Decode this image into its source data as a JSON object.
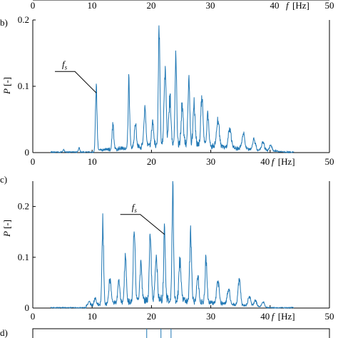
{
  "colors": {
    "line": "#1f77b4",
    "axis": "#000000"
  },
  "top_strip": {
    "xticks": [
      "0",
      "10",
      "20",
      "30",
      "40",
      "50"
    ],
    "xlabel_symbol": "f",
    "xlabel_unit": "[Hz]"
  },
  "chart_data": [
    {
      "panel_label": "b)",
      "type": "line",
      "xlabel_symbol": "f",
      "xlabel_unit": "[Hz]",
      "ylabel_symbol": "P",
      "ylabel_unit": "[-]",
      "xlim": [
        0,
        50
      ],
      "ylim": [
        0,
        0.2
      ],
      "xticks": [
        0,
        10,
        20,
        30,
        40,
        50
      ],
      "yticks": [
        0,
        0.1,
        0.2
      ],
      "yticklabels": [
        "0",
        "0.1",
        "0.2"
      ],
      "annotation": {
        "text": "fs",
        "x": 10.7,
        "y": 0.09
      },
      "peaks": [
        {
          "f": 5.2,
          "p": 0.004,
          "w": 0.25
        },
        {
          "f": 7.8,
          "p": 0.007,
          "w": 0.25
        },
        {
          "f": 10.7,
          "p": 0.09,
          "w": 0.3
        },
        {
          "f": 13.5,
          "p": 0.04,
          "w": 0.3
        },
        {
          "f": 16.2,
          "p": 0.097,
          "w": 0.3
        },
        {
          "f": 17.3,
          "p": 0.035,
          "w": 0.4
        },
        {
          "f": 18.9,
          "p": 0.055,
          "w": 0.4
        },
        {
          "f": 20.2,
          "p": 0.035,
          "w": 0.4
        },
        {
          "f": 21.3,
          "p": 0.18,
          "w": 0.3
        },
        {
          "f": 22.3,
          "p": 0.11,
          "w": 0.4
        },
        {
          "f": 23.1,
          "p": 0.07,
          "w": 0.4
        },
        {
          "f": 24.1,
          "p": 0.143,
          "w": 0.3
        },
        {
          "f": 25.2,
          "p": 0.06,
          "w": 0.4
        },
        {
          "f": 26.3,
          "p": 0.093,
          "w": 0.35
        },
        {
          "f": 27.2,
          "p": 0.06,
          "w": 0.4
        },
        {
          "f": 28.5,
          "p": 0.07,
          "w": 0.4
        },
        {
          "f": 29.5,
          "p": 0.045,
          "w": 0.4
        },
        {
          "f": 31.2,
          "p": 0.04,
          "w": 0.5
        },
        {
          "f": 33.2,
          "p": 0.03,
          "w": 0.5
        },
        {
          "f": 35.5,
          "p": 0.022,
          "w": 0.5
        },
        {
          "f": 37.3,
          "p": 0.015,
          "w": 0.5
        },
        {
          "f": 38.8,
          "p": 0.012,
          "w": 0.5
        },
        {
          "f": 40.1,
          "p": 0.008,
          "w": 0.5
        }
      ],
      "background": {
        "start": 10.5,
        "end": 43,
        "level": 0.015,
        "peak_at": 25
      }
    },
    {
      "panel_label": "c)",
      "type": "line",
      "xlabel_symbol": "f",
      "xlabel_unit": "[Hz]",
      "ylabel_symbol": "P",
      "ylabel_unit": "[-]",
      "xlim": [
        0,
        50
      ],
      "ylim": [
        0,
        0.25
      ],
      "xticks": [
        0,
        10,
        20,
        30,
        40,
        50
      ],
      "yticks": [
        0,
        0.1,
        0.2
      ],
      "yticklabels": [
        "0",
        "0.1",
        "0.2"
      ],
      "annotation": {
        "text": "fs",
        "x": 22.2,
        "y": 0.145
      },
      "peaks": [
        {
          "f": 9.5,
          "p": 0.007,
          "w": 0.3
        },
        {
          "f": 10.5,
          "p": 0.012,
          "w": 0.3
        },
        {
          "f": 11.8,
          "p": 0.16,
          "w": 0.3
        },
        {
          "f": 13.0,
          "p": 0.05,
          "w": 0.4
        },
        {
          "f": 14.5,
          "p": 0.04,
          "w": 0.4
        },
        {
          "f": 15.6,
          "p": 0.09,
          "w": 0.35
        },
        {
          "f": 17.1,
          "p": 0.15,
          "w": 0.35
        },
        {
          "f": 18.2,
          "p": 0.07,
          "w": 0.4
        },
        {
          "f": 19.8,
          "p": 0.13,
          "w": 0.35
        },
        {
          "f": 20.8,
          "p": 0.09,
          "w": 0.4
        },
        {
          "f": 22.2,
          "p": 0.145,
          "w": 0.3
        },
        {
          "f": 23.6,
          "p": 0.22,
          "w": 0.3
        },
        {
          "f": 24.8,
          "p": 0.08,
          "w": 0.4
        },
        {
          "f": 26.6,
          "p": 0.14,
          "w": 0.35
        },
        {
          "f": 27.8,
          "p": 0.05,
          "w": 0.4
        },
        {
          "f": 29.2,
          "p": 0.087,
          "w": 0.35
        },
        {
          "f": 31.2,
          "p": 0.045,
          "w": 0.5
        },
        {
          "f": 33.0,
          "p": 0.03,
          "w": 0.5
        },
        {
          "f": 34.8,
          "p": 0.05,
          "w": 0.45
        },
        {
          "f": 36.5,
          "p": 0.02,
          "w": 0.5
        },
        {
          "f": 37.5,
          "p": 0.012,
          "w": 0.5
        },
        {
          "f": 38.8,
          "p": 0.01,
          "w": 0.5
        }
      ],
      "background": {
        "start": 9,
        "end": 40,
        "level": 0.02,
        "peak_at": 22
      }
    }
  ],
  "bottom_strip": {
    "panel_label": "d)",
    "markers_f": [
      19.2,
      21.6,
      23.3
    ]
  }
}
